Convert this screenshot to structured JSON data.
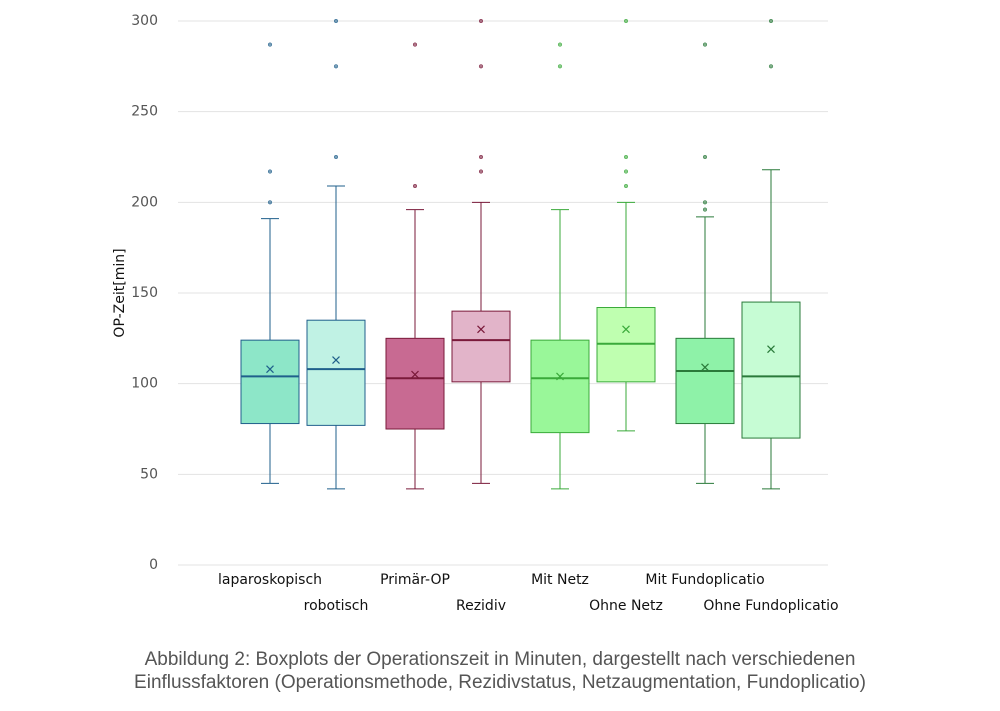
{
  "chart_data": {
    "type": "box",
    "y_label": "OP-Zeit[min]",
    "ylim": [
      0,
      300
    ],
    "yticks": [
      0,
      50,
      100,
      150,
      200,
      250,
      300
    ],
    "grid": true,
    "categories": [
      "laparoskopisch",
      "robotisch",
      "Primär-OP",
      "Rezidiv",
      "Mit Netz",
      "Ohne Netz",
      "Mit Fundoplicatio",
      "Ohne Fundoplicatio"
    ],
    "boxes": [
      {
        "color": "#8de6c8",
        "line_color": "#1f5f8b",
        "min": 45,
        "q1": 78,
        "median": 104,
        "q3": 124,
        "max": 191,
        "mean": 108,
        "outliers": [
          200,
          217,
          287
        ]
      },
      {
        "color": "#c0f2e4",
        "line_color": "#1f5f8b",
        "min": 42,
        "q1": 77,
        "median": 108,
        "q3": 135,
        "max": 209,
        "mean": 113,
        "outliers": [
          225,
          275,
          300
        ]
      },
      {
        "color": "#c86a92",
        "line_color": "#7a1a3a",
        "min": 42,
        "q1": 75,
        "median": 103,
        "q3": 125,
        "max": 196,
        "mean": 105,
        "outliers": [
          209,
          287
        ]
      },
      {
        "color": "#e2b4c9",
        "line_color": "#7a1a3a",
        "min": 45,
        "q1": 101,
        "median": 124,
        "q3": 140,
        "max": 200,
        "mean": 130,
        "outliers": [
          217,
          225,
          275,
          300
        ]
      },
      {
        "color": "#99f799",
        "line_color": "#3aaa3a",
        "min": 42,
        "q1": 73,
        "median": 103,
        "q3": 124,
        "max": 196,
        "mean": 104,
        "outliers": [
          275,
          287
        ]
      },
      {
        "color": "#bfffb0",
        "line_color": "#3aaa3a",
        "min": 74,
        "q1": 101,
        "median": 122,
        "q3": 142,
        "max": 200,
        "mean": 130,
        "outliers": [
          209,
          217,
          225,
          300
        ]
      },
      {
        "color": "#8ef2a8",
        "line_color": "#2a7a3a",
        "min": 45,
        "q1": 78,
        "median": 107,
        "q3": 125,
        "max": 192,
        "mean": 109,
        "outliers": [
          196,
          200,
          225,
          287
        ]
      },
      {
        "color": "#c6fcd4",
        "line_color": "#2a7a3a",
        "min": 42,
        "q1": 70,
        "median": 104,
        "q3": 145,
        "max": 218,
        "mean": 119,
        "outliers": [
          275,
          300
        ]
      }
    ]
  },
  "caption": [
    "Abbildung 2: Boxplots der Operationszeit in Minuten, dargestellt nach verschiedenen",
    "Einflussfaktoren (Operationsmethode, Rezidivstatus, Netzaugmentation, Fundoplicatio)"
  ]
}
